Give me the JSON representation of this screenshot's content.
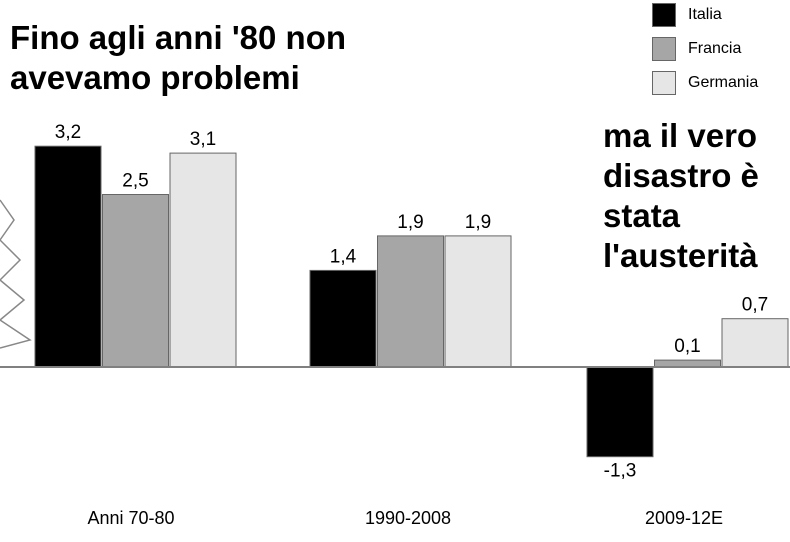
{
  "chart_data": {
    "type": "bar",
    "title": "Fino agli anni '80 non avevamo problemi",
    "title_lines": [
      "Fino agli anni '80 non",
      "avevamo problemi"
    ],
    "annotation": "ma il vero disastro è stata l'austerità",
    "annotation_lines": [
      "ma il vero",
      "disastro è",
      "stata",
      "l'austerità"
    ],
    "categories": [
      "Anni 70-80",
      "1990-2008",
      "2009-12E"
    ],
    "series": [
      {
        "name": "Italia",
        "color": "#000000",
        "values": [
          3.2,
          1.4,
          -1.3
        ],
        "labels": [
          "3,2",
          "1,4",
          "-1,3"
        ]
      },
      {
        "name": "Francia",
        "color": "#a6a6a6",
        "values": [
          2.5,
          1.9,
          0.1
        ],
        "labels": [
          "2,5",
          "1,9",
          "0,1"
        ]
      },
      {
        "name": "Germania",
        "color": "#e6e6e6",
        "values": [
          3.1,
          1.9,
          0.7
        ],
        "labels": [
          "3,1",
          "1,9",
          "0,7"
        ]
      }
    ],
    "xlabel": "",
    "ylabel": "",
    "ylim": [
      -1.3,
      3.2
    ],
    "grid": false,
    "legend_position": "top-right",
    "axis_break": true
  }
}
